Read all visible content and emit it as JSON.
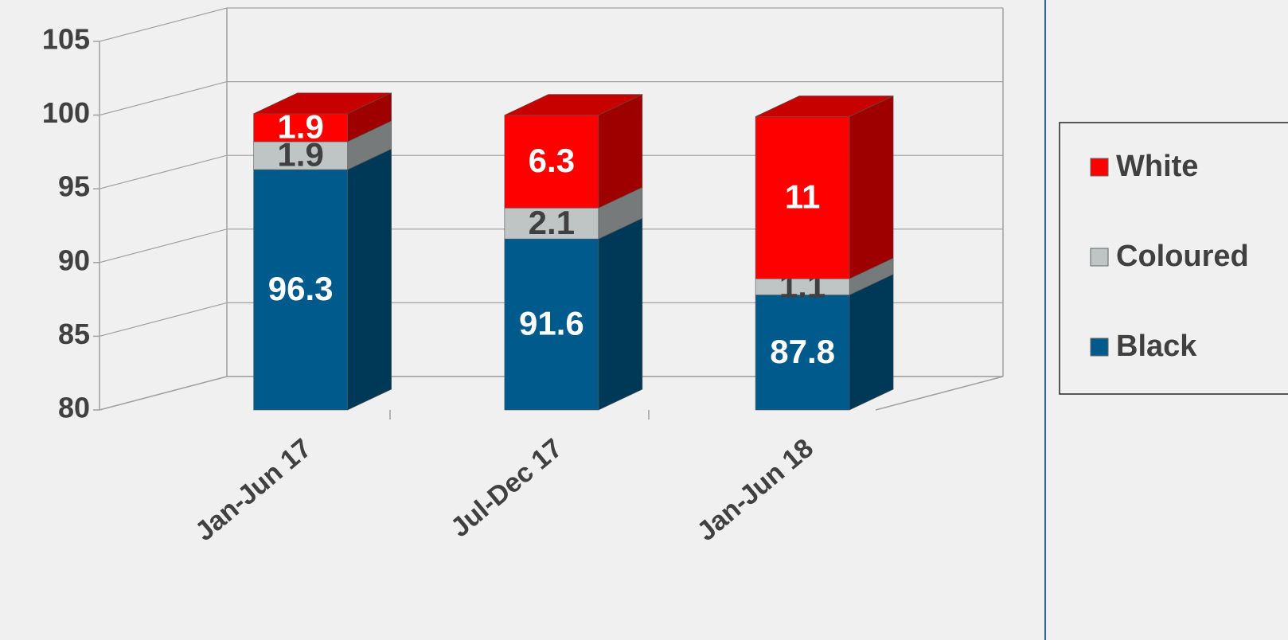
{
  "chart_data": {
    "type": "stacked_bar_3d",
    "categories": [
      "Jan-Jun 17",
      "Jul-Dec 17",
      "Jan-Jun 18"
    ],
    "series": [
      {
        "name": "Black",
        "color": "#005a8c",
        "values": [
          96.3,
          91.6,
          87.8
        ]
      },
      {
        "name": "Coloured",
        "color": "#bfc4c4",
        "values": [
          1.9,
          2.1,
          1.1
        ]
      },
      {
        "name": "White",
        "color": "#ff0000",
        "values": [
          1.9,
          6.3,
          11
        ]
      }
    ],
    "ylim": [
      80,
      105
    ],
    "yticks": [
      80,
      85,
      90,
      95,
      100,
      105
    ],
    "grid": true,
    "legend": "right"
  }
}
